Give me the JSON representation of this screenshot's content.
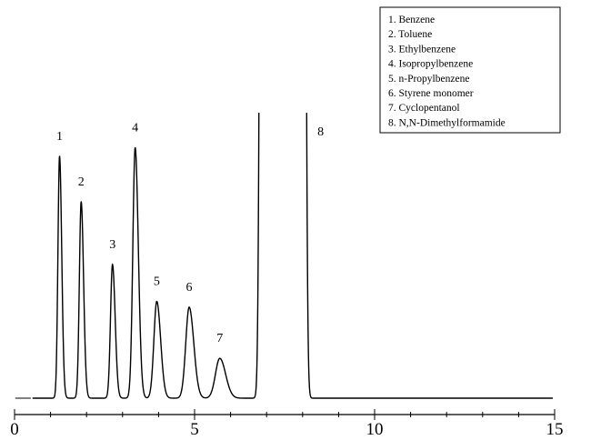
{
  "chart_data": {
    "type": "line",
    "title": "",
    "xlabel": "",
    "ylabel": "",
    "xlim": [
      0,
      15
    ],
    "x_ticks": [
      0,
      5,
      10,
      15
    ],
    "x_minor_tick_step": 1,
    "y_axis_visible": false,
    "grid": false,
    "legend_placement": "top-right",
    "line_color": "#000000",
    "baseline_y": 0,
    "y_display_max": 100,
    "peaks": [
      {
        "id": "1",
        "compound": "Benzene",
        "rt": 1.25,
        "height": 85,
        "width": 0.045
      },
      {
        "id": "2",
        "compound": "Toluene",
        "rt": 1.85,
        "height": 69,
        "width": 0.05
      },
      {
        "id": "3",
        "compound": "Ethylbenzene",
        "rt": 2.72,
        "height": 47,
        "width": 0.055
      },
      {
        "id": "4",
        "compound": "Isopropylbenzene",
        "rt": 3.35,
        "height": 88,
        "width": 0.065
      },
      {
        "id": "5",
        "compound": "n-Propylbenzene",
        "rt": 3.95,
        "height": 34,
        "width": 0.08
      },
      {
        "id": "6",
        "compound": "Styrene monomer",
        "rt": 4.85,
        "height": 32,
        "width": 0.095
      },
      {
        "id": "7",
        "compound": "Cyclopentanol",
        "rt": 5.7,
        "height": 14,
        "width": 0.12
      },
      {
        "id": "8",
        "compound": "N,N-Dimethylformamide",
        "rt": 7.45,
        "height": 600,
        "width": 0.4,
        "off_scale": true
      }
    ],
    "legend": [
      "1.  Benzene",
      "2.  Toluene",
      "3.  Ethylbenzene",
      "4.  Isopropylbenzene",
      "5.  n-Propylbenzene",
      "6.  Styrene monomer",
      "7.  Cyclopentanol",
      "8.  N,N-Dimethylformamide"
    ]
  }
}
